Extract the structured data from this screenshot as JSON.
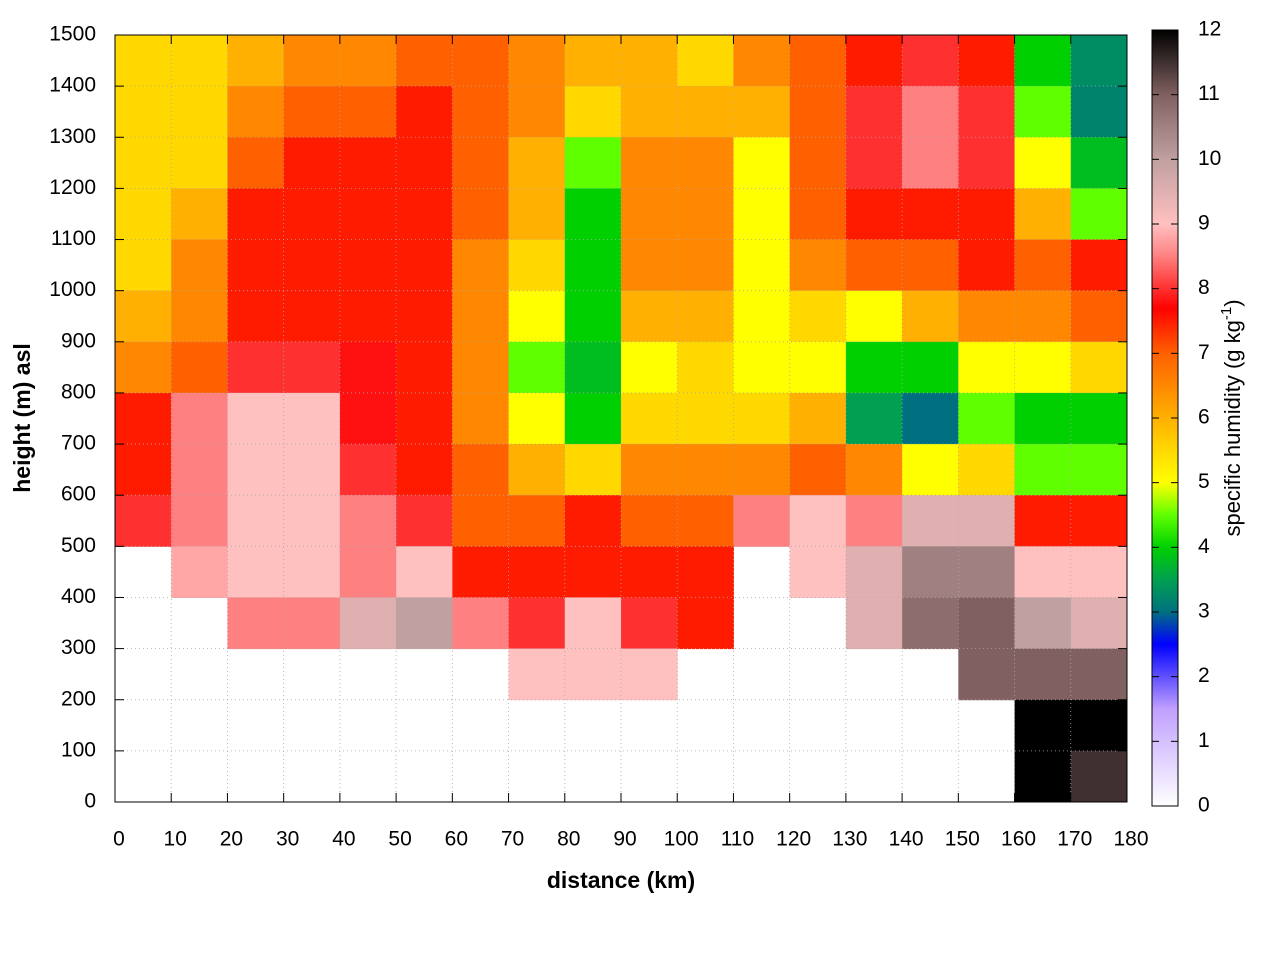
{
  "chart_data": {
    "type": "heatmap",
    "xlabel": "distance (km)",
    "ylabel": "height (m) asl",
    "x": [
      5,
      15,
      25,
      35,
      45,
      55,
      65,
      75,
      85,
      95,
      105,
      115,
      125,
      135,
      145,
      155,
      165,
      175
    ],
    "y": [
      1450,
      1350,
      1250,
      1150,
      1050,
      950,
      850,
      750,
      650,
      550,
      450,
      350,
      250,
      150,
      50
    ],
    "z": [
      [
        5.5,
        5.5,
        6,
        6.5,
        6.5,
        7,
        7,
        6.5,
        6,
        6,
        5.5,
        6.5,
        7,
        7.5,
        8,
        7.5,
        4,
        3.3
      ],
      [
        5.5,
        5.5,
        6.5,
        7,
        7,
        7.5,
        7,
        6.5,
        5.5,
        6,
        6,
        6,
        7,
        8,
        8.5,
        8,
        4.5,
        3.2
      ],
      [
        5.5,
        5.5,
        7,
        7.5,
        7.5,
        7.5,
        7,
        6,
        4.5,
        6.5,
        6.5,
        5,
        7,
        8,
        8.5,
        8,
        5,
        3.8
      ],
      [
        5.5,
        6,
        7.5,
        7.5,
        7.5,
        7.5,
        7,
        6,
        4,
        6.5,
        6.5,
        5,
        7,
        7.5,
        7.5,
        7.5,
        6,
        4.5
      ],
      [
        5.5,
        6.5,
        7.5,
        7.5,
        7.5,
        7.5,
        6.5,
        5.5,
        4,
        6.5,
        6.5,
        5,
        6.5,
        7,
        7,
        7.5,
        7,
        7.5
      ],
      [
        6,
        6.5,
        7.5,
        7.5,
        7.5,
        7.5,
        6.5,
        5,
        4,
        6,
        6,
        5,
        5.5,
        5,
        6,
        6.5,
        6.5,
        7
      ],
      [
        6.5,
        7,
        8,
        8,
        7.8,
        7.5,
        6.5,
        4.5,
        3.8,
        5,
        5.5,
        5,
        5,
        4,
        4,
        5,
        5,
        5.5
      ],
      [
        7.5,
        8.5,
        9,
        9,
        7.8,
        7.5,
        6.5,
        5,
        4,
        5.5,
        5.5,
        5.5,
        6,
        3.5,
        3,
        4.5,
        4,
        4
      ],
      [
        7.5,
        8.5,
        9,
        9,
        8,
        7.5,
        7,
        6,
        5.5,
        6.5,
        6.5,
        6.5,
        7,
        6.5,
        5,
        5.5,
        4.5,
        4.5
      ],
      [
        8,
        8.5,
        9,
        9,
        8.5,
        8,
        7,
        7,
        7.5,
        7,
        7,
        8.5,
        9,
        8.5,
        9.5,
        9.5,
        7.5,
        7.5
      ],
      [
        null,
        8.8,
        9,
        9,
        8.5,
        9,
        7.5,
        7.5,
        7.5,
        7.5,
        7.5,
        null,
        9,
        9.5,
        10.5,
        10.5,
        9,
        9
      ],
      [
        null,
        null,
        8.5,
        8.5,
        9.5,
        10,
        8.5,
        8,
        9,
        8,
        7.5,
        null,
        null,
        9.5,
        10.8,
        11,
        10,
        9.5
      ],
      [
        null,
        null,
        null,
        null,
        null,
        null,
        null,
        9,
        9,
        9,
        null,
        null,
        null,
        null,
        null,
        11,
        11,
        11
      ],
      [
        null,
        null,
        null,
        null,
        null,
        null,
        null,
        null,
        null,
        null,
        null,
        null,
        null,
        null,
        null,
        null,
        12,
        12
      ],
      [
        null,
        null,
        null,
        null,
        null,
        null,
        null,
        null,
        null,
        null,
        null,
        null,
        null,
        null,
        null,
        null,
        12,
        11.5
      ]
    ],
    "xlim": [
      0,
      180
    ],
    "xticks": [
      0,
      10,
      20,
      30,
      40,
      50,
      60,
      70,
      80,
      90,
      100,
      110,
      120,
      130,
      140,
      150,
      160,
      170,
      180
    ],
    "ylim": [
      0,
      1500
    ],
    "yticks": [
      0,
      100,
      200,
      300,
      400,
      500,
      600,
      700,
      800,
      900,
      1000,
      1100,
      1200,
      1300,
      1400,
      1500
    ],
    "grid": true,
    "colorbar": {
      "label": {
        "text": "specific humidity (g kg",
        "superscript": "-1",
        "suffix": ")"
      },
      "zlim": [
        0,
        12
      ],
      "ticks": [
        0,
        1,
        2,
        3,
        4,
        5,
        6,
        7,
        8,
        9,
        10,
        11,
        12
      ],
      "colormap": [
        {
          "value": 0,
          "color": "#ffffff"
        },
        {
          "value": 1.5,
          "color": "#c0a0ff"
        },
        {
          "value": 2.5,
          "color": "#0000ff"
        },
        {
          "value": 3,
          "color": "#007080"
        },
        {
          "value": 3.5,
          "color": "#00a050"
        },
        {
          "value": 4,
          "color": "#00d000"
        },
        {
          "value": 4.5,
          "color": "#60ff00"
        },
        {
          "value": 5,
          "color": "#ffff00"
        },
        {
          "value": 6,
          "color": "#ffb000"
        },
        {
          "value": 7,
          "color": "#ff6000"
        },
        {
          "value": 7.7,
          "color": "#ff0000"
        },
        {
          "value": 8.5,
          "color": "#ff8080"
        },
        {
          "value": 9,
          "color": "#ffc0c0"
        },
        {
          "value": 10,
          "color": "#c0a0a0"
        },
        {
          "value": 11,
          "color": "#806060"
        },
        {
          "value": 12,
          "color": "#000000"
        }
      ]
    }
  }
}
